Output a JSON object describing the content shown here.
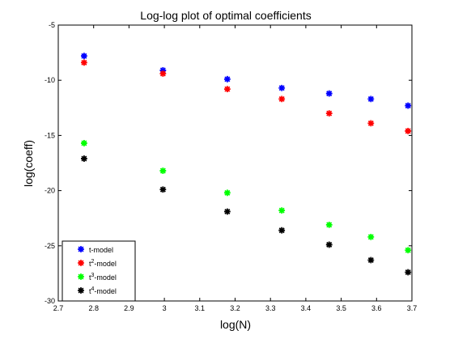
{
  "chart_data": {
    "type": "scatter",
    "title": "Log-log plot of optimal coefficients",
    "xlabel": "log(N)",
    "ylabel": "log(coeff)",
    "xlim": [
      2.7,
      3.7
    ],
    "ylim": [
      -30,
      -5
    ],
    "xticks": [
      2.7,
      2.8,
      2.9,
      3.0,
      3.1,
      3.2,
      3.3,
      3.4,
      3.5,
      3.6,
      3.7
    ],
    "xtick_labels": [
      "2.7",
      "2.8",
      "2.9",
      "3",
      "3.1",
      "3.2",
      "3.3",
      "3.4",
      "3.5",
      "3.6",
      "3.7"
    ],
    "yticks": [
      -30,
      -25,
      -20,
      -15,
      -10,
      -5
    ],
    "ytick_labels": [
      "-30",
      "-25",
      "-20",
      "-15",
      "-10",
      "-5"
    ],
    "grid": false,
    "legend_position": "bottom-left",
    "x": [
      2.773,
      2.996,
      3.178,
      3.332,
      3.466,
      3.584,
      3.689
    ],
    "series": [
      {
        "name_prefix": "t",
        "superscript": "",
        "name_suffix": "-model",
        "color": "#0000ff",
        "values": [
          -7.8,
          -9.1,
          -9.9,
          -10.7,
          -11.2,
          -11.7,
          -12.3
        ]
      },
      {
        "name_prefix": "t",
        "superscript": "2",
        "name_suffix": "-model",
        "color": "#ff0000",
        "values": [
          -8.4,
          -9.4,
          -10.8,
          -11.7,
          -13.0,
          -13.9,
          -14.6
        ]
      },
      {
        "name_prefix": "t",
        "superscript": "3",
        "name_suffix": "-model",
        "color": "#00ff00",
        "values": [
          -15.7,
          -18.2,
          -20.2,
          -21.8,
          -23.1,
          -24.2,
          -25.4
        ]
      },
      {
        "name_prefix": "t",
        "superscript": "4",
        "name_suffix": "-model",
        "color": "#000000",
        "values": [
          -17.1,
          -19.9,
          -21.9,
          -23.6,
          -24.9,
          -26.3,
          -27.4
        ]
      }
    ]
  }
}
